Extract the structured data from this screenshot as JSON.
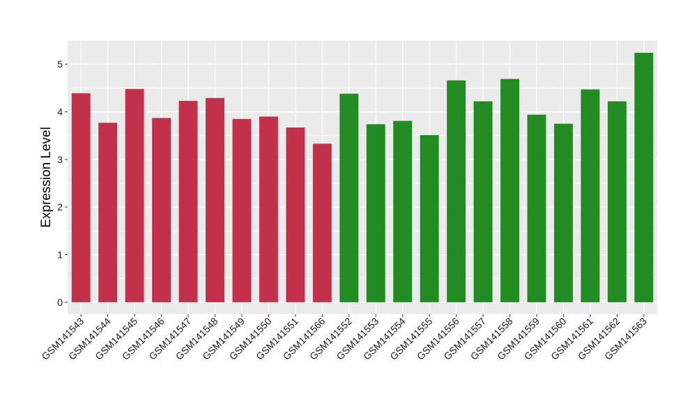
{
  "chart_data": {
    "type": "bar",
    "xlabel": "",
    "ylabel": "Expression Level",
    "ylim": [
      -0.25,
      5.5
    ],
    "yticks": [
      0,
      1,
      2,
      3,
      4,
      5
    ],
    "grid": true,
    "background": "#EBEBEB",
    "grid_color": "#FFFFFF",
    "categories": [
      "GSM141543",
      "GSM141544",
      "GSM141545",
      "GSM141546",
      "GSM141547",
      "GSM141548",
      "GSM141549",
      "GSM141550",
      "GSM141551",
      "GSM141566",
      "GSM141552",
      "GSM141553",
      "GSM141554",
      "GSM141555",
      "GSM141556",
      "GSM141557",
      "GSM141558",
      "GSM141559",
      "GSM141560",
      "GSM141561",
      "GSM141562",
      "GSM141563"
    ],
    "values": [
      4.39,
      3.77,
      4.48,
      3.87,
      4.23,
      4.29,
      3.85,
      3.9,
      3.67,
      3.33,
      4.38,
      3.74,
      3.81,
      3.51,
      4.66,
      4.22,
      4.69,
      3.94,
      3.75,
      4.47,
      4.22,
      5.24
    ],
    "colors": [
      "#C3304A",
      "#C3304A",
      "#C3304A",
      "#C3304A",
      "#C3304A",
      "#C3304A",
      "#C3304A",
      "#C3304A",
      "#C3304A",
      "#C3304A",
      "#228B22",
      "#228B22",
      "#228B22",
      "#228B22",
      "#228B22",
      "#228B22",
      "#228B22",
      "#228B22",
      "#228B22",
      "#228B22",
      "#228B22",
      "#228B22"
    ]
  }
}
